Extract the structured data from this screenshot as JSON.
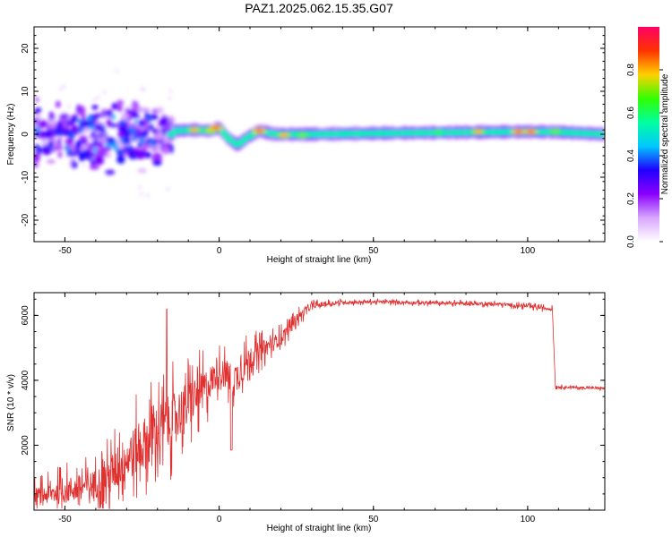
{
  "title": "PAZ1.2025.062.15.35.G07",
  "chart_data": [
    {
      "type": "heatmap",
      "xlabel": "Height of straight line (km)",
      "ylabel": "Frequency (Hz)",
      "xlim": [
        -60,
        125
      ],
      "ylim": [
        -25,
        25
      ],
      "xticks": [
        -50,
        0,
        50,
        100
      ],
      "xtick_labels": [
        "-50",
        "0",
        "50",
        "100"
      ],
      "yticks": [
        -20,
        -10,
        0,
        10,
        20
      ],
      "ytick_labels": [
        "-20",
        "-10",
        "0",
        "10",
        "20"
      ],
      "colorbar": {
        "label": "Normalized spectral amplitude",
        "range": [
          0,
          1
        ],
        "ticks": [
          0.0,
          0.2,
          0.4,
          0.6,
          0.8
        ],
        "tick_labels": [
          "0.0",
          "0.2",
          "0.4",
          "0.6",
          "0.8"
        ],
        "colormap": [
          "#ffffff",
          "#d7a6ff",
          "#8a00ff",
          "#2000ff",
          "#00c8ff",
          "#00ffa0",
          "#33ff00",
          "#ffd000",
          "#ff3300",
          "#ff0066"
        ]
      },
      "trace_center_hz": [
        [
          -15,
          0.8
        ],
        [
          -8,
          1.0
        ],
        [
          -3,
          0.8
        ],
        [
          0,
          1.5
        ],
        [
          3,
          -1.0
        ],
        [
          6,
          -2.5
        ],
        [
          9,
          -0.8
        ],
        [
          13,
          0.8
        ],
        [
          18,
          0.0
        ],
        [
          30,
          0.0
        ],
        [
          60,
          0.3
        ],
        [
          100,
          0.6
        ],
        [
          110,
          0.5
        ],
        [
          125,
          0.0
        ]
      ],
      "hotspots": [
        {
          "x": -8,
          "y": 1.0,
          "amplitude": 0.8
        },
        {
          "x": -3,
          "y": 0.8,
          "amplitude": 0.75
        },
        {
          "x": -1,
          "y": 1.5,
          "amplitude": 0.85
        },
        {
          "x": 13,
          "y": 0.8,
          "amplitude": 0.85
        },
        {
          "x": 21,
          "y": -0.2,
          "amplitude": 0.8
        },
        {
          "x": 27,
          "y": -0.2,
          "amplitude": 0.7
        },
        {
          "x": 71,
          "y": 0.4,
          "amplitude": 0.65
        },
        {
          "x": 84,
          "y": 0.6,
          "amplitude": 0.8
        },
        {
          "x": 97,
          "y": 0.6,
          "amplitude": 0.85
        },
        {
          "x": 101,
          "y": 0.6,
          "amplitude": 0.85
        },
        {
          "x": 109,
          "y": 0.6,
          "amplitude": 0.7
        }
      ]
    },
    {
      "type": "line",
      "xlabel": "Height of straight line (km)",
      "ylabel": "SNR (10 * v/v)",
      "xlim": [
        -60,
        125
      ],
      "ylim": [
        0,
        6700
      ],
      "xticks": [
        -50,
        0,
        50,
        100
      ],
      "xtick_labels": [
        "-50",
        "0",
        "50",
        "100"
      ],
      "yticks": [
        2000,
        4000,
        6000
      ],
      "ytick_labels": [
        "2000",
        "4000",
        "6000"
      ],
      "color": "#e03030",
      "envelope": {
        "x": [
          -60,
          -55,
          -50,
          -45,
          -40,
          -35,
          -30,
          -25,
          -20,
          -15,
          -10,
          -5,
          0,
          5,
          10,
          15,
          20,
          25,
          30,
          35,
          40,
          50,
          60,
          70,
          80,
          90,
          100,
          108,
          109,
          115,
          125
        ],
        "mean": [
          400,
          500,
          600,
          700,
          800,
          1100,
          1600,
          2000,
          2400,
          2800,
          3300,
          3700,
          4300,
          4000,
          4700,
          5000,
          5300,
          5900,
          6300,
          6350,
          6400,
          6420,
          6400,
          6380,
          6370,
          6350,
          6280,
          6200,
          3800,
          3780,
          3750
        ],
        "spread": [
          600,
          700,
          900,
          900,
          1000,
          1300,
          1600,
          1800,
          1900,
          1800,
          1500,
          1300,
          900,
          1200,
          800,
          600,
          450,
          350,
          200,
          150,
          120,
          110,
          110,
          110,
          110,
          110,
          120,
          120,
          80,
          80,
          80
        ]
      },
      "features": [
        {
          "x": -17,
          "y": 6200
        },
        {
          "x": 4,
          "y": 1850
        },
        {
          "x": 108.5,
          "y": 6250
        },
        {
          "x": 108.5,
          "y": 3800
        }
      ]
    }
  ]
}
